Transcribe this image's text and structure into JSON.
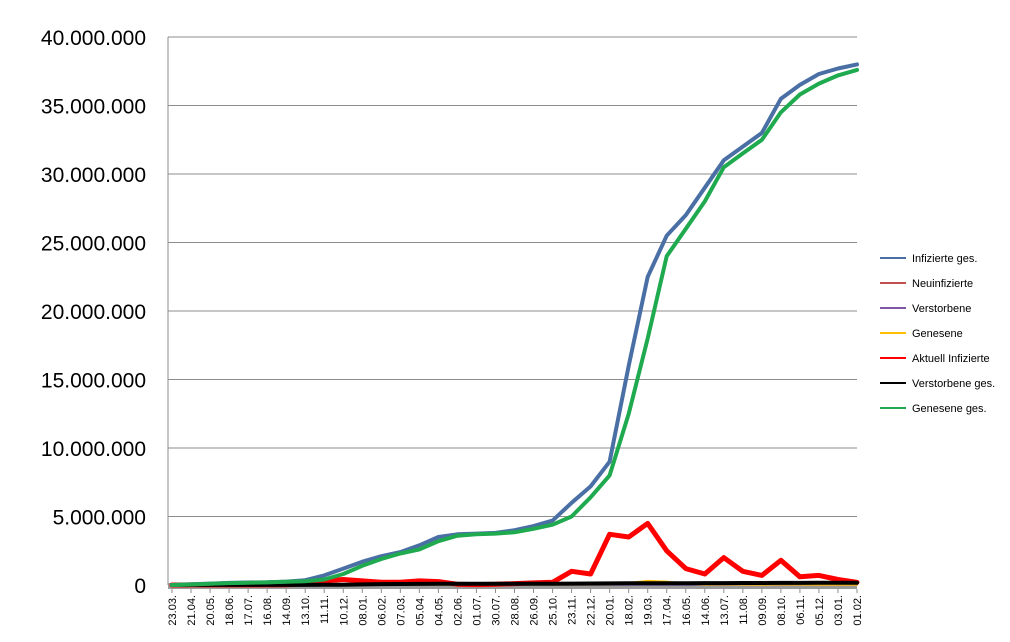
{
  "chart_data": {
    "type": "line",
    "title": "",
    "xlabel": "",
    "ylabel": "",
    "ylim": [
      0,
      40000000
    ],
    "yticks": [
      0,
      5000000,
      10000000,
      15000000,
      20000000,
      25000000,
      30000000,
      35000000,
      40000000
    ],
    "ytick_labels": [
      "0",
      "5.000.000",
      "10.000.000",
      "15.000.000",
      "20.000.000",
      "25.000.000",
      "30.000.000",
      "35.000.000",
      "40.000.000"
    ],
    "grid": true,
    "legend_position": "right",
    "x": [
      "23.03.",
      "21.04.",
      "20.05.",
      "18.06.",
      "17.07.",
      "16.08.",
      "14.09.",
      "13.10.",
      "11.11.",
      "10.12.",
      "08.01.",
      "06.02.",
      "07.03.",
      "05.04.",
      "04.05.",
      "02.06.",
      "01.07.",
      "30.07.",
      "28.08.",
      "26.09.",
      "25.10.",
      "23.11.",
      "22.12.",
      "20.01.",
      "18.02.",
      "19.03.",
      "17.04.",
      "16.05.",
      "14.06.",
      "13.07.",
      "11.08.",
      "09.09.",
      "08.10.",
      "06.11.",
      "05.12.",
      "03.01.",
      "01.02."
    ],
    "series": [
      {
        "name": "Infizierte ges.",
        "color": "#4a6fa5",
        "width": 4,
        "values": [
          0,
          50000,
          100000,
          150000,
          180000,
          200000,
          250000,
          350000,
          700000,
          1200000,
          1700000,
          2100000,
          2400000,
          2900000,
          3500000,
          3700000,
          3750000,
          3800000,
          4000000,
          4300000,
          4700000,
          6000000,
          7200000,
          9000000,
          16000000,
          22500000,
          25500000,
          27000000,
          29000000,
          31000000,
          32000000,
          33000000,
          35500000,
          36500000,
          37300000,
          37700000,
          38000000
        ]
      },
      {
        "name": "Neuinfizierte",
        "color": "#c0504d",
        "width": 1.5,
        "values": [
          5000,
          5000,
          5000,
          5000,
          5000,
          5000,
          5000,
          8000,
          20000,
          30000,
          30000,
          20000,
          20000,
          25000,
          20000,
          10000,
          5000,
          5000,
          10000,
          15000,
          20000,
          30000,
          30000,
          50000,
          100000,
          120000,
          80000,
          50000,
          30000,
          40000,
          30000,
          25000,
          40000,
          30000,
          25000,
          20000,
          15000
        ]
      },
      {
        "name": "Verstorbene",
        "color": "#7d57a3",
        "width": 1.5,
        "values": [
          0,
          0,
          0,
          0,
          0,
          0,
          0,
          0,
          100,
          300,
          500,
          400,
          200,
          200,
          200,
          100,
          50,
          20,
          20,
          50,
          100,
          200,
          300,
          400,
          400,
          500,
          400,
          300,
          100,
          100,
          100,
          100,
          100,
          100,
          100,
          100,
          100
        ]
      },
      {
        "name": "Genesene",
        "color": "#ffc000",
        "width": 2,
        "values": [
          5000,
          5000,
          5000,
          5000,
          5000,
          5000,
          5000,
          8000,
          20000,
          30000,
          30000,
          20000,
          20000,
          25000,
          20000,
          10000,
          5000,
          5000,
          10000,
          15000,
          20000,
          30000,
          30000,
          50000,
          150000,
          300000,
          250000,
          100000,
          30000,
          40000,
          30000,
          25000,
          40000,
          30000,
          25000,
          20000,
          15000
        ]
      },
      {
        "name": "Aktuell Infizierte",
        "color": "#ff0000",
        "width": 5,
        "values": [
          0,
          10000,
          10000,
          10000,
          10000,
          10000,
          20000,
          80000,
          300000,
          400000,
          300000,
          200000,
          200000,
          300000,
          250000,
          60000,
          30000,
          50000,
          100000,
          150000,
          200000,
          1000000,
          800000,
          3700000,
          3500000,
          4500000,
          2500000,
          1200000,
          800000,
          2000000,
          1000000,
          700000,
          1800000,
          600000,
          700000,
          400000,
          200000
        ]
      },
      {
        "name": "Verstorbene ges.",
        "color": "#000000",
        "width": 4,
        "values": [
          0,
          5000,
          8000,
          9000,
          9000,
          9000,
          10000,
          10000,
          12000,
          25000,
          45000,
          65000,
          72000,
          78000,
          85000,
          89000,
          90000,
          92000,
          93000,
          94000,
          96000,
          100000,
          108000,
          118000,
          122000,
          126000,
          130000,
          133000,
          137000,
          141000,
          144000,
          147000,
          150000,
          154000,
          158000,
          161000,
          163000
        ]
      },
      {
        "name": "Genesene ges.",
        "color": "#1faa4f",
        "width": 4,
        "values": [
          0,
          40000,
          90000,
          140000,
          170000,
          190000,
          230000,
          280000,
          400000,
          800000,
          1400000,
          1900000,
          2300000,
          2600000,
          3200000,
          3600000,
          3700000,
          3750000,
          3850000,
          4100000,
          4400000,
          5000000,
          6400000,
          8000000,
          12500000,
          18000000,
          24000000,
          26000000,
          28000000,
          30500000,
          31500000,
          32500000,
          34500000,
          35800000,
          36600000,
          37200000,
          37600000
        ]
      }
    ]
  }
}
